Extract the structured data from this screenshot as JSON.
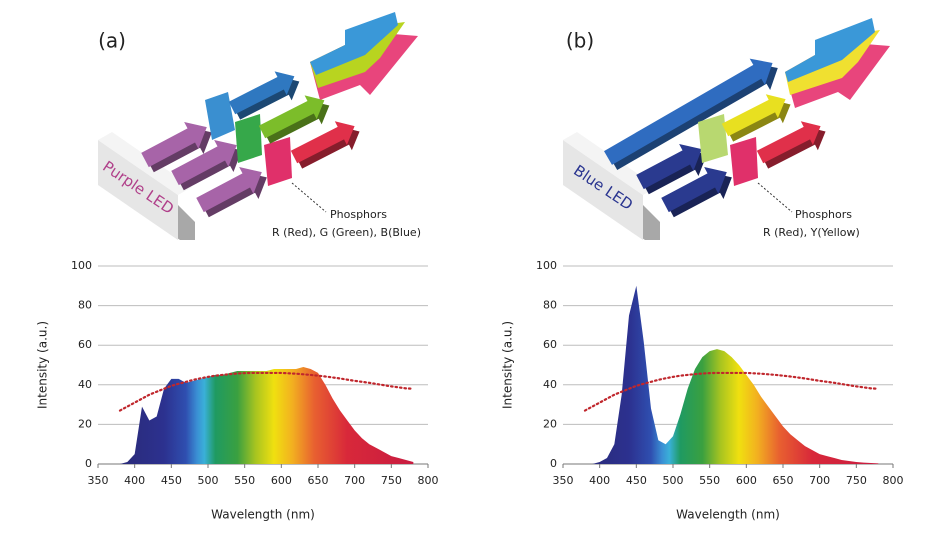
{
  "panels": [
    {
      "label": "(a)",
      "led": "Purple LED",
      "phosphors": "Phosphors",
      "phosphor_list": "R (Red), G (Green), B(Blue)"
    },
    {
      "label": "(b)",
      "led": "Blue LED",
      "phosphors": "Phosphors",
      "phosphor_list": "R (Red), Y(Yellow)"
    }
  ],
  "chart_data": [
    {
      "type": "area",
      "xlabel": "Wavelength (nm)",
      "ylabel": "Intensity (a.u.)",
      "x": [
        380,
        390,
        400,
        410,
        420,
        430,
        440,
        450,
        460,
        470,
        480,
        490,
        500,
        510,
        520,
        530,
        540,
        550,
        560,
        570,
        580,
        590,
        600,
        610,
        620,
        630,
        640,
        650,
        660,
        670,
        680,
        690,
        700,
        710,
        720,
        730,
        740,
        750,
        760,
        770,
        780
      ],
      "series": [
        {
          "fill": "spectrum",
          "values": [
            0,
            1,
            5,
            29,
            22,
            24,
            38,
            43,
            43,
            41,
            42,
            43,
            44,
            45,
            45,
            46,
            47,
            47,
            47,
            47,
            47,
            48,
            48,
            48,
            48,
            49,
            48,
            46,
            40,
            33,
            27,
            22,
            17,
            13,
            10,
            8,
            6,
            4,
            3,
            2,
            1
          ]
        },
        {
          "color": "#c0272d",
          "line_style": "dotted",
          "values": [
            27,
            29,
            31,
            33,
            35,
            36.5,
            38,
            39.5,
            40.5,
            41.5,
            42.5,
            43.3,
            44,
            44.6,
            45,
            45.4,
            45.7,
            45.9,
            46,
            46,
            46,
            46,
            46,
            45.8,
            45.6,
            45.3,
            45,
            44.6,
            44.2,
            43.7,
            43.2,
            42.6,
            42,
            41.5,
            41,
            40.4,
            39.8,
            39.2,
            38.7,
            38.2,
            38
          ]
        }
      ],
      "xlim": [
        350,
        800
      ],
      "ylim": [
        0,
        100
      ],
      "xticks": [
        350,
        400,
        450,
        500,
        550,
        600,
        650,
        700,
        750,
        800
      ],
      "yticks": [
        0,
        20,
        40,
        60,
        80,
        100
      ],
      "grid": true
    },
    {
      "type": "area",
      "xlabel": "Wavelength (nm)",
      "ylabel": "Intensity (a.u.)",
      "x": [
        380,
        390,
        400,
        410,
        420,
        430,
        440,
        450,
        460,
        470,
        480,
        490,
        500,
        510,
        520,
        530,
        540,
        550,
        560,
        570,
        580,
        590,
        600,
        610,
        620,
        630,
        640,
        650,
        660,
        670,
        680,
        690,
        700,
        710,
        720,
        730,
        740,
        750,
        760,
        770,
        780
      ],
      "series": [
        {
          "fill": "spectrum",
          "values": [
            0,
            0,
            1,
            3,
            10,
            35,
            75,
            90,
            62,
            28,
            12,
            10,
            14,
            25,
            38,
            48,
            54,
            57,
            58,
            57,
            54,
            50,
            45,
            40,
            34,
            29,
            24,
            19,
            15,
            12,
            9,
            7,
            5,
            4,
            3,
            2,
            1.5,
            1,
            0.7,
            0.5,
            0.3
          ]
        },
        {
          "color": "#c0272d",
          "line_style": "dotted",
          "values": [
            27,
            29,
            31,
            33,
            35,
            36.5,
            38,
            39.5,
            40.5,
            41.5,
            42.5,
            43.3,
            44,
            44.6,
            45,
            45.4,
            45.7,
            45.9,
            46,
            46,
            46,
            46,
            46,
            45.8,
            45.6,
            45.3,
            45,
            44.6,
            44.2,
            43.7,
            43.2,
            42.6,
            42,
            41.5,
            41,
            40.4,
            39.8,
            39.2,
            38.7,
            38.2,
            38
          ]
        }
      ],
      "xlim": [
        350,
        800
      ],
      "ylim": [
        0,
        100
      ],
      "xticks": [
        350,
        400,
        450,
        500,
        550,
        600,
        650,
        700,
        750,
        800
      ],
      "yticks": [
        0,
        20,
        40,
        60,
        80,
        100
      ],
      "grid": true
    }
  ]
}
